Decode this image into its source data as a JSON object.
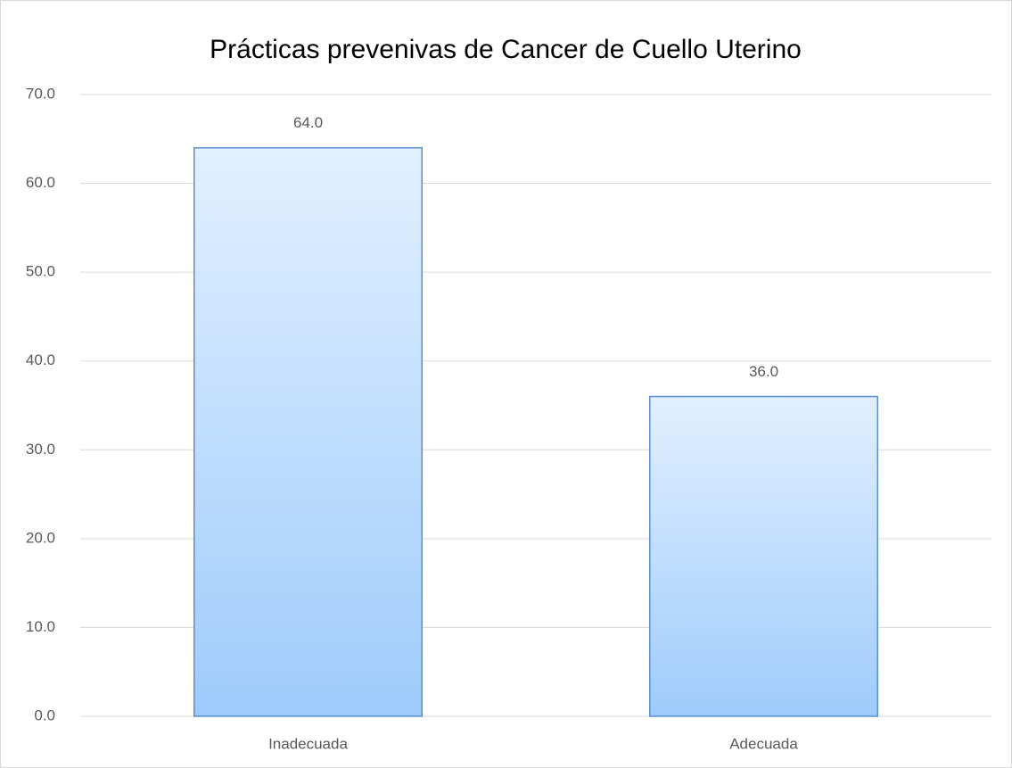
{
  "chart_data": {
    "type": "bar",
    "title": "Prácticas prevenivas de Cancer de Cuello Uterino",
    "categories": [
      "Inadecuada",
      "Adecuada"
    ],
    "values": [
      64,
      36
    ],
    "value_labels": [
      "64.0",
      "36.0"
    ],
    "color": "#9ecbfb",
    "ylim": [
      0,
      70
    ],
    "yticks": [
      {
        "value": 0,
        "label": "0.0"
      },
      {
        "value": 10,
        "label": "10.0"
      },
      {
        "value": 20,
        "label": "20.0"
      },
      {
        "value": 30,
        "label": "30.0"
      },
      {
        "value": 40,
        "label": "40.0"
      },
      {
        "value": 50,
        "label": "50.0"
      },
      {
        "value": 60,
        "label": "60.0"
      },
      {
        "value": 70,
        "label": "70.0"
      }
    ],
    "grid": true
  }
}
